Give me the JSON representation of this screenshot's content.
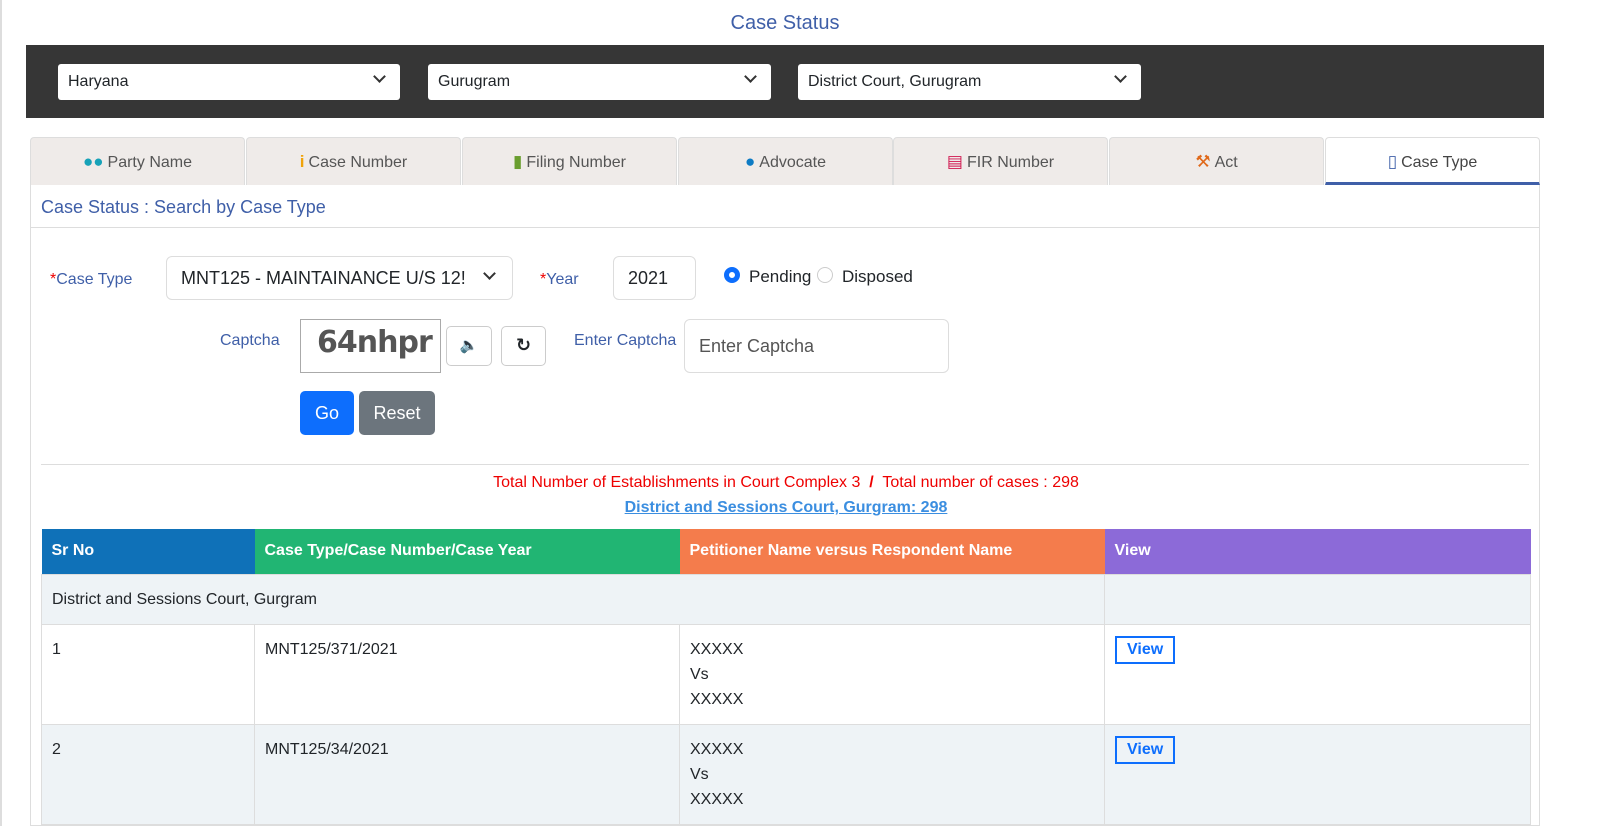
{
  "page_title": "Case Status",
  "selectors": {
    "state": "Haryana",
    "district": "Gurugram",
    "court": "District Court, Gurugram"
  },
  "tabs": [
    {
      "label": "Party Name",
      "icon": "users-icon",
      "color": "#17a2b8"
    },
    {
      "label": "Case Number",
      "icon": "info-icon",
      "color": "#f0a30a"
    },
    {
      "label": "Filing Number",
      "icon": "copy-icon",
      "color": "#6a9e2f"
    },
    {
      "label": "Advocate",
      "icon": "user-icon",
      "color": "#0d7bc4"
    },
    {
      "label": "FIR Number",
      "icon": "list-icon",
      "color": "#d0164f"
    },
    {
      "label": "Act",
      "icon": "gavel-icon",
      "color": "#e0691a"
    },
    {
      "label": "Case Type",
      "icon": "file-icon",
      "color": "#3f5fa8"
    }
  ],
  "panel_title": "Case Status : Search by Case Type",
  "form": {
    "case_type_label": "Case Type",
    "case_type_value": "MNT125 - MAINTAINANCE U/S 12!",
    "year_label": "Year",
    "year_value": "2021",
    "status_options": [
      "Pending",
      "Disposed"
    ],
    "status_selected": "Pending",
    "captcha_label": "Captcha",
    "captcha_text": "64nhpr",
    "enter_captcha_label": "Enter Captcha",
    "enter_captcha_placeholder": "Enter Captcha",
    "go": "Go",
    "reset": "Reset"
  },
  "summary": {
    "establishments": "Total Number of Establishments in Court Complex 3",
    "separator": "/",
    "cases": "Total number of cases : 298",
    "link": "District and Sessions Court, Gurgram: 298"
  },
  "table": {
    "headers": [
      "Sr No",
      "Case Type/Case Number/Case Year",
      "Petitioner Name versus Respondent Name",
      "View"
    ],
    "header_colors": [
      "#0f71b8",
      "#21b573",
      "#f47c4c",
      "#8c6ad8"
    ],
    "group": "District and Sessions Court, Gurgram",
    "rows": [
      {
        "sr": "1",
        "case": "MNT125/371/2021",
        "pet": "XXXXX",
        "vs": "Vs",
        "res": "XXXXX",
        "view": "View"
      },
      {
        "sr": "2",
        "case": "MNT125/34/2021",
        "pet": "XXXXX",
        "vs": "Vs",
        "res": "XXXXX",
        "view": "View"
      }
    ]
  }
}
